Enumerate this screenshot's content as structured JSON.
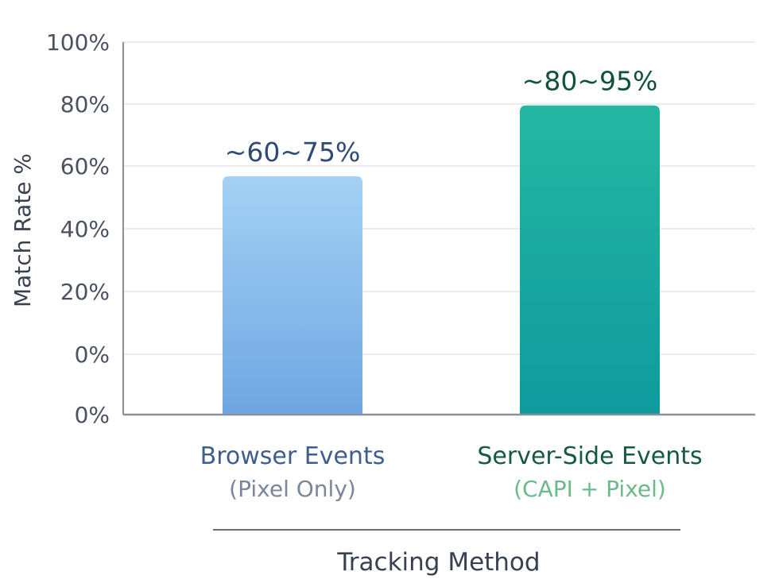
{
  "chart_data": {
    "type": "bar",
    "title": "",
    "ylabel": "Match Rate %",
    "xlabel": "Tracking Method",
    "y_tick_labels": [
      "0%",
      "0%",
      "20%",
      "40%",
      "60%",
      "80%",
      "100%"
    ],
    "categories": [
      {
        "name": "Browser Events",
        "subtitle": "(Pixel Only)",
        "value_label": "~60~75%",
        "value": 64,
        "name_color": "#3f5e8c",
        "subtitle_color": "#7a869a",
        "value_label_color": "#2f4a73",
        "bar_color_top": "#a4d1f4",
        "bar_color_bottom": "#6fa6e2"
      },
      {
        "name": "Server-Side Events",
        "subtitle": "(CAPI + Pixel)",
        "value_label": "~80~95%",
        "value": 83,
        "name_color": "#155a3c",
        "subtitle_color": "#6cb98a",
        "value_label_color": "#0f5236",
        "bar_color_top": "#25b7a2",
        "bar_color_bottom": "#0f9a9e"
      }
    ],
    "ylim": [
      0,
      100
    ],
    "grid": true
  }
}
